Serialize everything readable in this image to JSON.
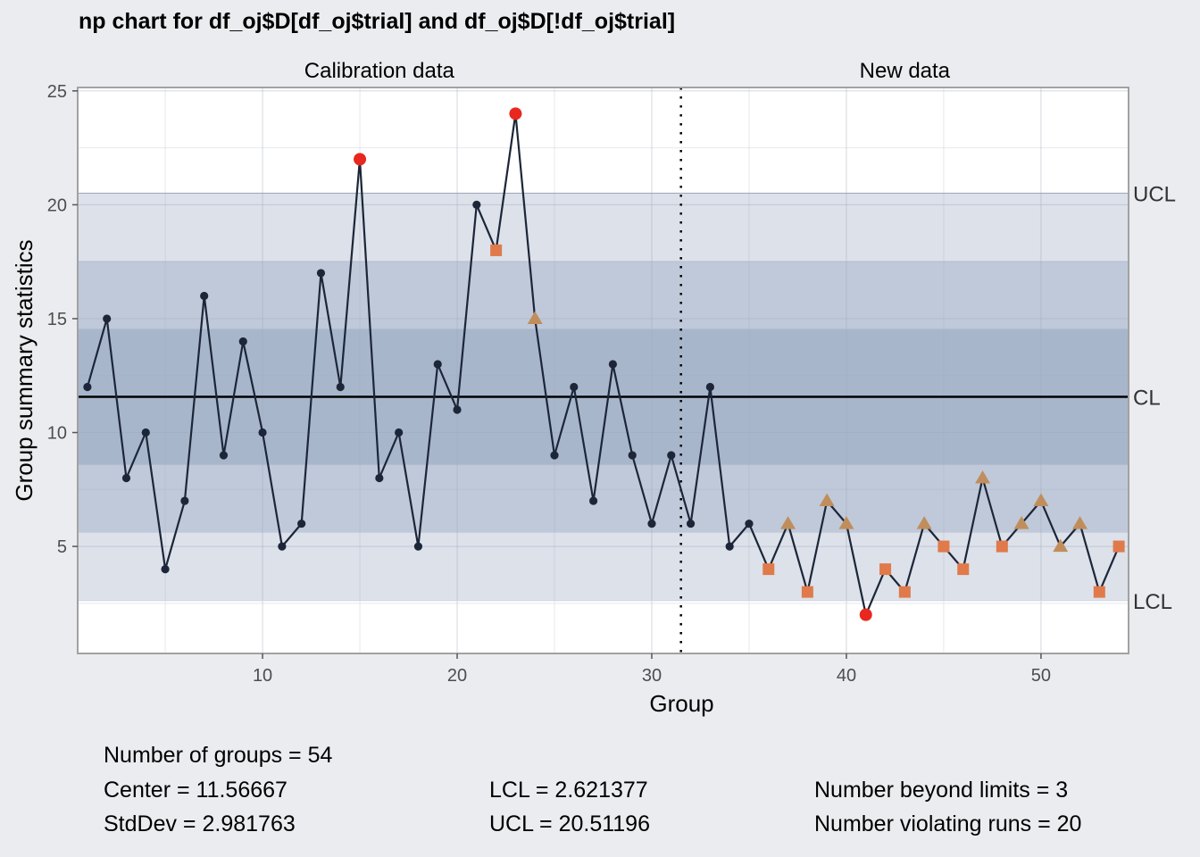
{
  "chart_data": {
    "type": "line",
    "title": "np chart for df_oj$D[df_oj$trial] and df_oj$D[!df_oj$trial]",
    "xlabel": "Group",
    "ylabel": "Group summary statistics",
    "xlim": [
      0.5,
      54.5
    ],
    "ylim": [
      0.3,
      25.15
    ],
    "x_ticks": [
      10,
      20,
      30,
      40,
      50
    ],
    "y_ticks": [
      5,
      10,
      15,
      20,
      25
    ],
    "grid": true,
    "sections": [
      {
        "label": "Calibration data",
        "from": 1,
        "to": 31
      },
      {
        "label": "New data",
        "from": 32,
        "to": 54
      }
    ],
    "divider_x": 31.5,
    "limits": {
      "cl": 11.56667,
      "ucl": 20.51196,
      "lcl": 2.621377,
      "cl_label": "CL",
      "ucl_label": "UCL",
      "lcl_label": "LCL"
    },
    "series": [
      {
        "x": [
          1,
          2,
          3,
          4,
          5,
          6,
          7,
          8,
          9,
          10,
          11,
          12,
          13,
          14,
          15,
          16,
          17,
          18,
          19,
          20,
          21,
          22,
          23,
          24,
          25,
          26,
          27,
          28,
          29,
          30,
          31,
          32,
          33,
          34,
          35,
          36,
          37,
          38,
          39,
          40,
          41,
          42,
          43,
          44,
          45,
          46,
          47,
          48,
          49,
          50,
          51,
          52,
          53,
          54
        ],
        "values": [
          12,
          15,
          8,
          10,
          4,
          7,
          16,
          9,
          14,
          10,
          5,
          6,
          17,
          12,
          22,
          8,
          10,
          5,
          13,
          11,
          20,
          18,
          24,
          15,
          9,
          12,
          7,
          13,
          9,
          6,
          9,
          6,
          12,
          5,
          6,
          4,
          6,
          3,
          7,
          6,
          2,
          4,
          3,
          6,
          5,
          4,
          8,
          5,
          6,
          7,
          5,
          6,
          3,
          5
        ],
        "markers": [
          "dot",
          "dot",
          "dot",
          "dot",
          "dot",
          "dot",
          "dot",
          "dot",
          "dot",
          "dot",
          "dot",
          "dot",
          "dot",
          "dot",
          "beyond",
          "dot",
          "dot",
          "dot",
          "dot",
          "dot",
          "dot",
          "square",
          "beyond",
          "triangle",
          "dot",
          "dot",
          "dot",
          "dot",
          "dot",
          "dot",
          "dot",
          "dot",
          "dot",
          "dot",
          "dot",
          "square",
          "triangle",
          "square",
          "triangle",
          "triangle",
          "beyond",
          "square",
          "square",
          "triangle",
          "square",
          "square",
          "triangle",
          "square",
          "triangle",
          "triangle",
          "triangle",
          "triangle",
          "square",
          "square"
        ]
      }
    ],
    "colors": {
      "line": "#1C2638",
      "point": "#1C2638",
      "beyond": "#E8271F",
      "square": "#E07A4A",
      "triangle": "#C08E5C",
      "cl_line": "#000000",
      "divider": "#000000",
      "zone_outer": "#DCE1EA",
      "zone_middle": "#BFC9DA",
      "zone_inner": "#A8B6CC",
      "panel_bg": "#FFFFFF",
      "page_bg": "#EBECF0"
    }
  },
  "stats": {
    "groups": "Number of groups = 54",
    "center": "Center = 11.56667",
    "stddev": "StdDev = 2.981763",
    "lcl": "LCL = 2.621377",
    "ucl": "UCL = 20.51196",
    "beyond": "Number beyond limits = 3",
    "violating": "Number violating runs = 20"
  }
}
